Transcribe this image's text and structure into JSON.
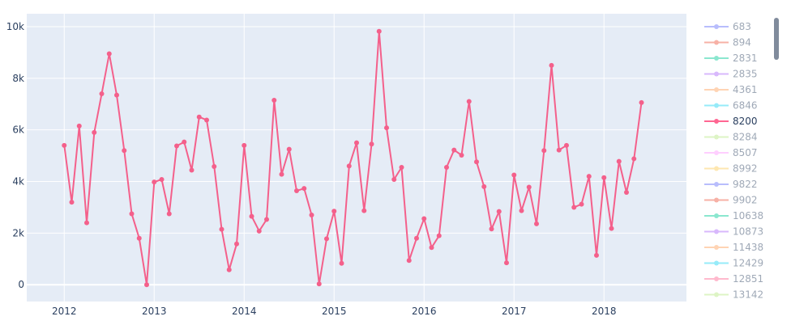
{
  "chart_data": {
    "type": "line",
    "title": "",
    "xlabel": "",
    "ylabel": "",
    "x_tick_labels": [
      "2012",
      "2013",
      "2014",
      "2015",
      "2016",
      "2017",
      "2018"
    ],
    "y_tick_labels": [
      "0",
      "2k",
      "4k",
      "6k",
      "8k",
      "10k"
    ],
    "y_tick_values": [
      0,
      2000,
      4000,
      6000,
      8000,
      10000
    ],
    "ylim": [
      -650,
      10500
    ],
    "xlim": [
      "2011-08",
      "2018-12"
    ],
    "grid": true,
    "legend_position": "right",
    "plot_bg": "#e5ecf6",
    "grid_color": "#ffffff",
    "highlighted_series": "8200",
    "series": [
      {
        "name": "8200",
        "color": "#f4608b",
        "x": [
          "2012-01",
          "2012-02",
          "2012-03",
          "2012-04",
          "2012-05",
          "2012-06",
          "2012-07",
          "2012-08",
          "2012-09",
          "2012-10",
          "2012-11",
          "2012-12",
          "2013-01",
          "2013-02",
          "2013-03",
          "2013-04",
          "2013-05",
          "2013-06",
          "2013-07",
          "2013-08",
          "2013-09",
          "2013-10",
          "2013-11",
          "2013-12",
          "2014-01",
          "2014-02",
          "2014-03",
          "2014-04",
          "2014-05",
          "2014-06",
          "2014-07",
          "2014-08",
          "2014-09",
          "2014-10",
          "2014-11",
          "2014-12",
          "2015-01",
          "2015-02",
          "2015-03",
          "2015-04",
          "2015-05",
          "2015-06",
          "2015-07",
          "2015-08",
          "2015-09",
          "2015-10",
          "2015-11",
          "2015-12",
          "2016-01",
          "2016-02",
          "2016-03",
          "2016-04",
          "2016-05",
          "2016-06",
          "2016-07",
          "2016-08",
          "2016-09",
          "2016-10",
          "2016-11",
          "2016-12",
          "2017-01",
          "2017-02",
          "2017-03",
          "2017-04",
          "2017-05",
          "2017-06",
          "2017-07",
          "2017-08",
          "2017-09",
          "2017-10",
          "2017-11",
          "2017-12",
          "2018-01",
          "2018-02",
          "2018-03",
          "2018-04",
          "2018-05",
          "2018-06"
        ],
        "y": [
          5400,
          3200,
          6150,
          2400,
          5900,
          7400,
          8950,
          7350,
          5200,
          2750,
          1800,
          0,
          3980,
          4080,
          2750,
          5380,
          5530,
          4440,
          6500,
          6380,
          4580,
          2150,
          580,
          1580,
          5400,
          2650,
          2080,
          2530,
          7150,
          4280,
          5250,
          3640,
          3730,
          2700,
          30,
          1780,
          2850,
          830,
          4600,
          5500,
          2870,
          5450,
          9820,
          6080,
          4080,
          4550,
          940,
          1800,
          2560,
          1440,
          1900,
          4550,
          5220,
          5020,
          7100,
          4760,
          3800,
          2160,
          2840,
          850,
          4250,
          2870,
          3780,
          2360,
          5200,
          8500,
          5220,
          5400,
          3000,
          3120,
          4200,
          1140,
          4150,
          2180,
          4780,
          3580,
          4880,
          7060
        ]
      }
    ]
  },
  "legend": {
    "items": [
      {
        "label": "683",
        "color": "#636efa"
      },
      {
        "label": "894",
        "color": "#ef553b"
      },
      {
        "label": "2831",
        "color": "#00cc96"
      },
      {
        "label": "2835",
        "color": "#ab63fa"
      },
      {
        "label": "4361",
        "color": "#ffa15a"
      },
      {
        "label": "6846",
        "color": "#19d3f3"
      },
      {
        "label": "8200",
        "color": "#ff6692"
      },
      {
        "label": "8284",
        "color": "#b6e880"
      },
      {
        "label": "8507",
        "color": "#ff97ff"
      },
      {
        "label": "8992",
        "color": "#fecb52"
      },
      {
        "label": "9822",
        "color": "#636efa"
      },
      {
        "label": "9902",
        "color": "#ef553b"
      },
      {
        "label": "10638",
        "color": "#00cc96"
      },
      {
        "label": "10873",
        "color": "#ab63fa"
      },
      {
        "label": "11438",
        "color": "#ffa15a"
      },
      {
        "label": "12429",
        "color": "#19d3f3"
      },
      {
        "label": "12851",
        "color": "#ff6692"
      },
      {
        "label": "13142",
        "color": "#b6e880"
      }
    ]
  }
}
